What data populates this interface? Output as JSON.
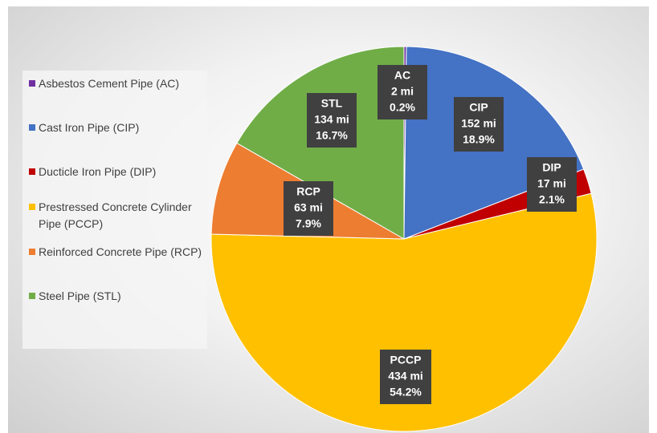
{
  "chart_data": {
    "type": "pie",
    "categories": [
      "Asbestos Cement Pipe (AC)",
      "Cast Iron Pipe (CIP)",
      "Ducticle Iron Pipe (DIP)",
      "Prestressed Concrete Cylinder Pipe (PCCP)",
      "Reinforced Concrete Pipe (RCP)",
      "Steel Pipe (STL)"
    ],
    "labels": [
      "AC",
      "CIP",
      "DIP",
      "PCCP",
      "RCP",
      "STL"
    ],
    "mile_labels": [
      "2 mi",
      "152 mi",
      "17 mi",
      "434 mi",
      "63 mi",
      "134 mi"
    ],
    "values": [
      0.2,
      18.9,
      2.1,
      54.2,
      7.9,
      16.7
    ],
    "value_labels": [
      "0.2%",
      "18.9%",
      "2.1%",
      "54.2%",
      "7.9%",
      "16.7%"
    ],
    "colors": [
      "#7030a0",
      "#4472c4",
      "#c00000",
      "#ffc000",
      "#ed7d31",
      "#70ad47"
    ],
    "legend": "left"
  }
}
